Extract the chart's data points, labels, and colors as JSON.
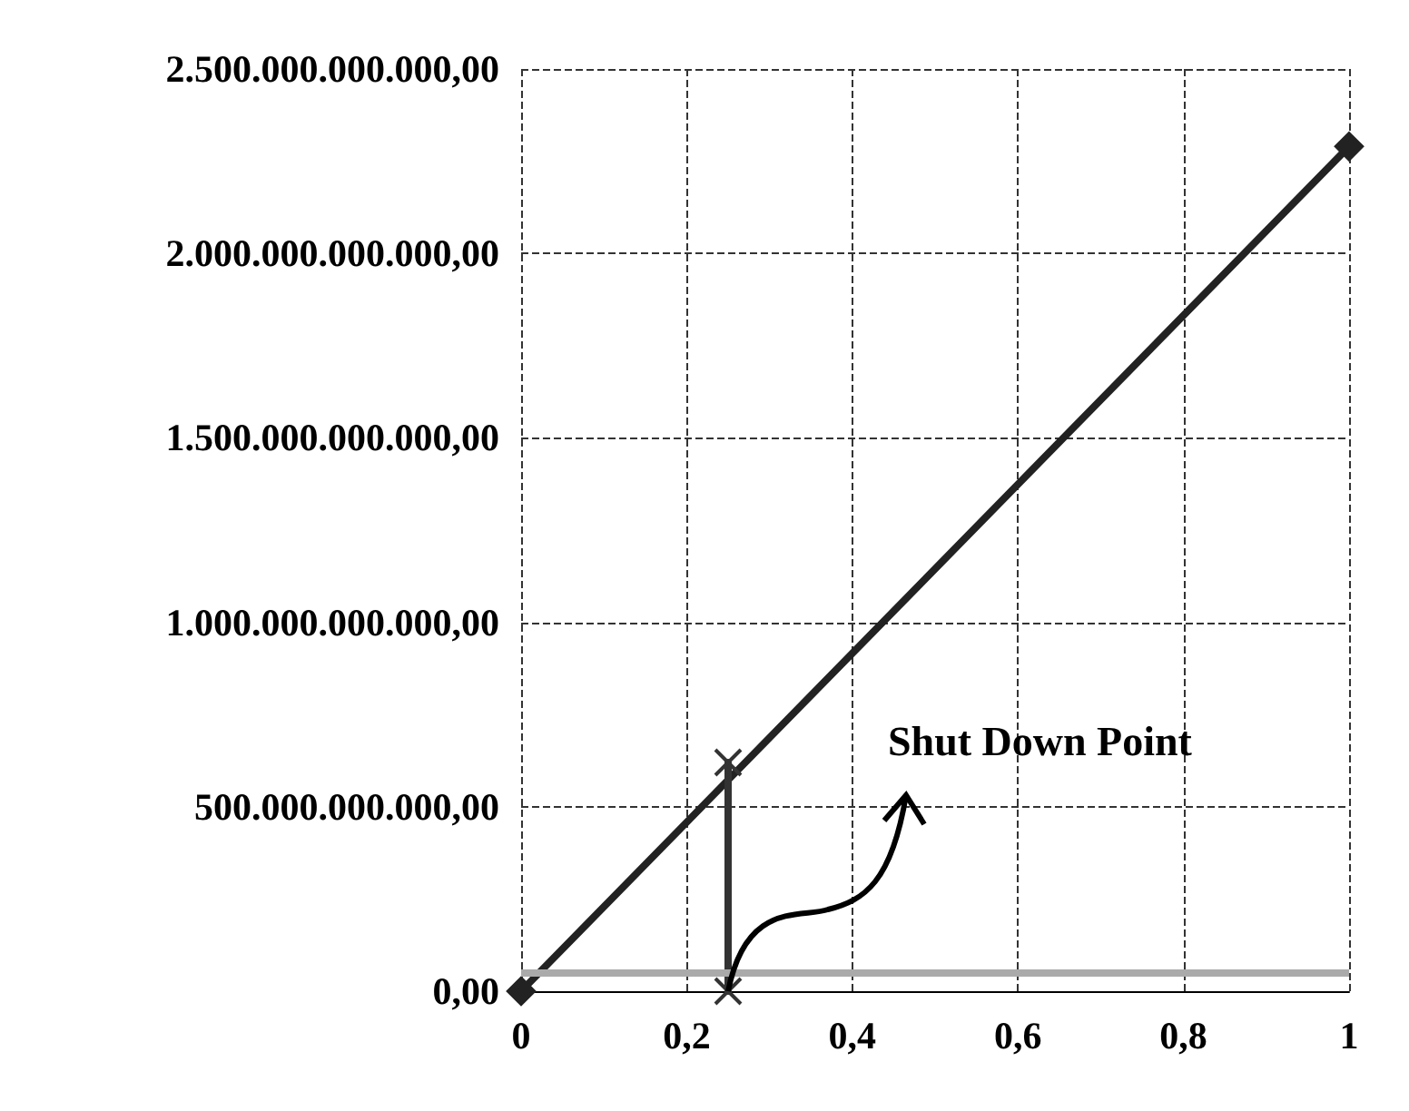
{
  "chart_data": {
    "type": "line",
    "xlim": [
      0,
      1
    ],
    "ylim": [
      0,
      2500000000000
    ],
    "xticks": [
      0,
      {
        "value": 0.2,
        "label": "0,2"
      },
      {
        "value": 0.4,
        "label": "0,4"
      },
      {
        "value": 0.6,
        "label": "0,6"
      },
      {
        "value": 0.8,
        "label": "0,8"
      },
      1
    ],
    "yticks": [
      {
        "value": 0,
        "label": "0,00"
      },
      {
        "value": 500000000000,
        "label": "500.000.000.000,00"
      },
      {
        "value": 1000000000000,
        "label": "1.000.000.000.000,00"
      },
      {
        "value": 1500000000000,
        "label": "1.500.000.000.000,00"
      },
      {
        "value": 2000000000000,
        "label": "2.000.000.000.000,00"
      },
      {
        "value": 2500000000000,
        "label": "2.500.000.000.000,00"
      }
    ],
    "series": [
      {
        "x": [
          0,
          1
        ],
        "values": [
          0,
          2290000000000
        ],
        "color": "#222222",
        "marker": "diamond"
      },
      {
        "x": [
          0.25,
          0.25
        ],
        "values": [
          0,
          620000000000
        ],
        "color": "#333333",
        "marker": "cross"
      }
    ],
    "ref_lines": [
      {
        "axis": "y",
        "value": 50000000000,
        "color": "#aaaaaa"
      }
    ],
    "annotations": [
      {
        "text": "Shut Down Point",
        "x": 0.25,
        "y": 0
      }
    ],
    "grid": true,
    "line_style": "solid"
  }
}
